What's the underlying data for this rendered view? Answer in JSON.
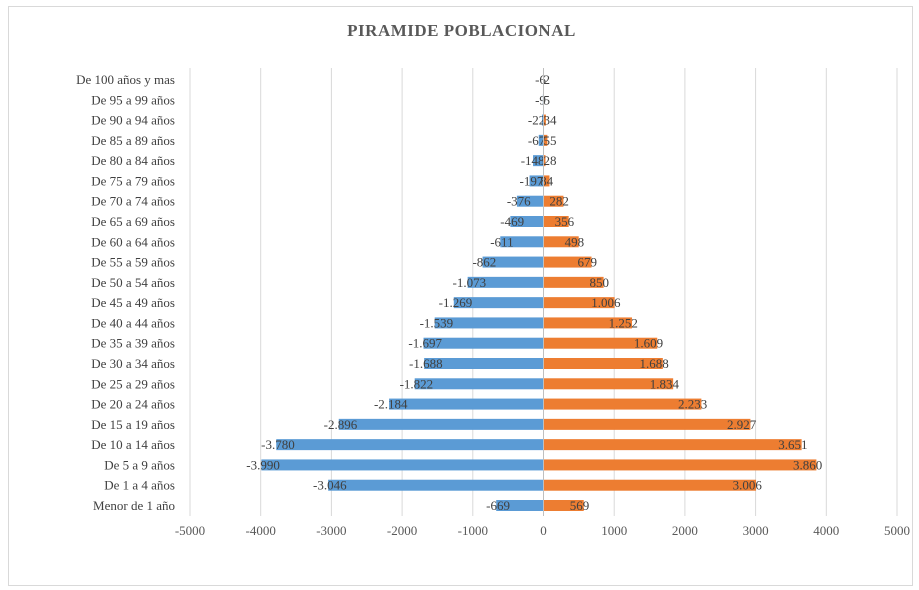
{
  "chart_data": {
    "type": "bar",
    "orientation": "horizontal",
    "title": "PIRAMIDE POBLACIONAL",
    "categories": [
      "Menor de 1 año",
      "De 1 a 4 años",
      "De 5 a 9 años",
      "De 10 a 14 años",
      "De 15 a 19 años",
      "De 20 a 24 años",
      "De 25 a 29 años",
      "De 30 a 34 años",
      "De 35 a 39 años",
      "De 40 a 44 años",
      "De 45 a 49 años",
      "De 50 a 54 años",
      "De 55 a 59 años",
      "De 60 a 64 años",
      "De 65 a 69 años",
      "De 70 a 74 años",
      "De 75 a 79 años",
      "De 80 a 84 años",
      "De 85 a 89 años",
      "De 90 a 94 años",
      "De 95 a 99 años",
      "De 100 años y mas"
    ],
    "series": [
      {
        "color": "#5b9bd5",
        "values": [
          -669,
          -3046,
          -3990,
          -3780,
          -2896,
          -2184,
          -1822,
          -1688,
          -1697,
          -1539,
          -1269,
          -1073,
          -862,
          -611,
          -469,
          -376,
          -197,
          -148,
          -67,
          -22,
          -9,
          -6
        ],
        "labels": [
          "-669",
          "-3.046",
          "-3.990",
          "-3.780",
          "-2.896",
          "-2.184",
          "-1.822",
          "-1.688",
          "-1.697",
          "-1.539",
          "-1.269",
          "-1.073",
          "-862",
          "-611",
          "-469",
          "-376",
          "-197",
          "-148",
          "-67",
          "-22",
          "-9",
          "-6"
        ]
      },
      {
        "color": "#ed7d31",
        "values": [
          569,
          3006,
          3860,
          3651,
          2927,
          2233,
          1834,
          1688,
          1609,
          1252,
          1006,
          850,
          679,
          498,
          356,
          282,
          84,
          28,
          55,
          34,
          5,
          2
        ],
        "labels": [
          "569",
          "3.006",
          "3.860",
          "3.651",
          "2.927",
          "2.233",
          "1.834",
          "1.688",
          "1.609",
          "1.252",
          "1.006",
          "850",
          "679",
          "498",
          "356",
          "282",
          "84",
          "28",
          "55",
          "34",
          "5",
          "2"
        ]
      }
    ],
    "xlim": [
      -5000,
      5000
    ],
    "xticks": [
      "-5000",
      "-4000",
      "-3000",
      "-2000",
      "-1000",
      "0",
      "1000",
      "2000",
      "3000",
      "4000",
      "5000"
    ],
    "grid": "vertical",
    "legend": "none"
  }
}
